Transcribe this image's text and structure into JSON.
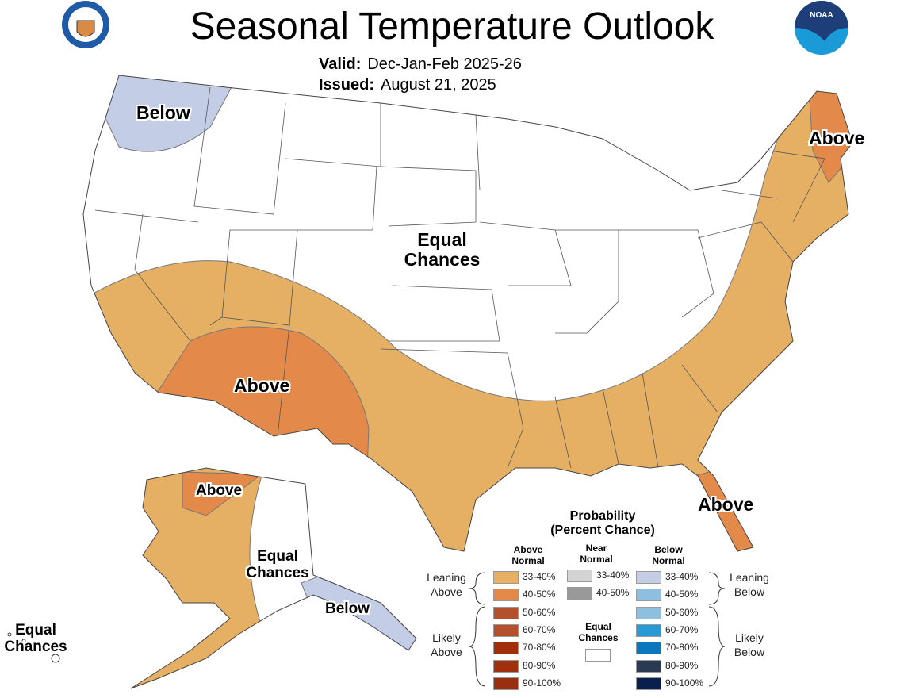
{
  "header": {
    "title": "Seasonal Temperature Outlook",
    "valid_label": "Valid:",
    "valid_value": "Dec-Jan-Feb 2025-26",
    "issued_label": "Issued:",
    "issued_value": "August 21, 2025",
    "logos": [
      "department-of-commerce-seal",
      "noaa-logo"
    ]
  },
  "map_labels": {
    "nw": "Below",
    "northeast": "Above",
    "central": "Equal Chances",
    "southwest": "Above",
    "florida": "Above",
    "alaska_north": "Above",
    "alaska_central": "Equal Chances",
    "alaska_panhandle": "Below",
    "hawaii": "Equal Chances"
  },
  "regions": [
    {
      "area": "Pacific Northwest",
      "category": "Below Normal",
      "probability": "33-40%",
      "color": "#c3cde6"
    },
    {
      "area": "Southern tier & East Coast",
      "category": "Above Normal",
      "probability": "33-40%",
      "color": "#e6b064"
    },
    {
      "area": "Southwest",
      "category": "Above Normal",
      "probability": "40-50%",
      "color": "#e3894a"
    },
    {
      "area": "Maine",
      "category": "Above Normal",
      "probability": "40-50%",
      "color": "#e3894a"
    },
    {
      "area": "Florida",
      "category": "Above Normal",
      "probability": "40-50%",
      "color": "#e3894a"
    },
    {
      "area": "Central/Northern US",
      "category": "Equal Chances",
      "color": "#ffffff"
    }
  ],
  "legend": {
    "title_line1": "Probability",
    "title_line2": "(Percent Chance)",
    "above_header": "Above Normal",
    "near_header": "Near Normal",
    "below_header": "Below Normal",
    "leaning_above": "Leaning Above",
    "likely_above": "Likely Above",
    "leaning_below": "Leaning Below",
    "likely_below": "Likely Below",
    "equal_chances": "Equal Chances",
    "above": [
      {
        "range": "33-40%",
        "color": "#e6b064"
      },
      {
        "range": "40-50%",
        "color": "#e3894a"
      },
      {
        "range": "50-60%",
        "color": "#b5502e"
      },
      {
        "range": "60-70%",
        "color": "#b5502e"
      },
      {
        "range": "70-80%",
        "color": "#a0300c"
      },
      {
        "range": "80-90%",
        "color": "#a0300c"
      },
      {
        "range": "90-100%",
        "color": "#9a2e10"
      }
    ],
    "near": [
      {
        "range": "33-40%",
        "color": "#d4d4d4"
      },
      {
        "range": "40-50%",
        "color": "#999999"
      }
    ],
    "below": [
      {
        "range": "33-40%",
        "color": "#c3cde6"
      },
      {
        "range": "40-50%",
        "color": "#8fbfdf"
      },
      {
        "range": "50-60%",
        "color": "#8fbfdf"
      },
      {
        "range": "60-70%",
        "color": "#2a9ad6"
      },
      {
        "range": "70-80%",
        "color": "#0b78bd"
      },
      {
        "range": "80-90%",
        "color": "#293a52"
      },
      {
        "range": "90-100%",
        "color": "#0b1f4c"
      }
    ]
  }
}
